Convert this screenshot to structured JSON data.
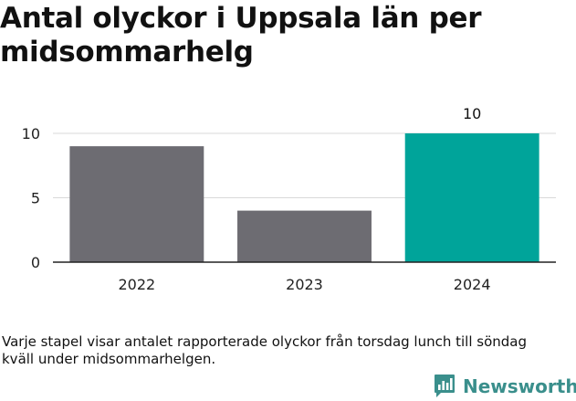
{
  "title": "Antal olyckor i Uppsala län per midsommarhelg",
  "footnote": "Varje stapel visar antalet rapporterade olyckor från torsdag lunch till söndag kväll under midsommarhelgen.",
  "brand": {
    "name": "Newsworthy",
    "color": "#3a8f8c",
    "icon": "newsworthy-chart-icon"
  },
  "chart_data": {
    "type": "bar",
    "categories": [
      "2022",
      "2023",
      "2024"
    ],
    "values": [
      9,
      4,
      10
    ],
    "bar_colors": [
      "#6d6c72",
      "#6d6c72",
      "#00a49a"
    ],
    "data_labels": [
      null,
      null,
      "10"
    ],
    "y_ticks": [
      0,
      5,
      10
    ],
    "ylim": [
      0,
      10
    ],
    "xlabel": "",
    "ylabel": "",
    "grid": true
  }
}
